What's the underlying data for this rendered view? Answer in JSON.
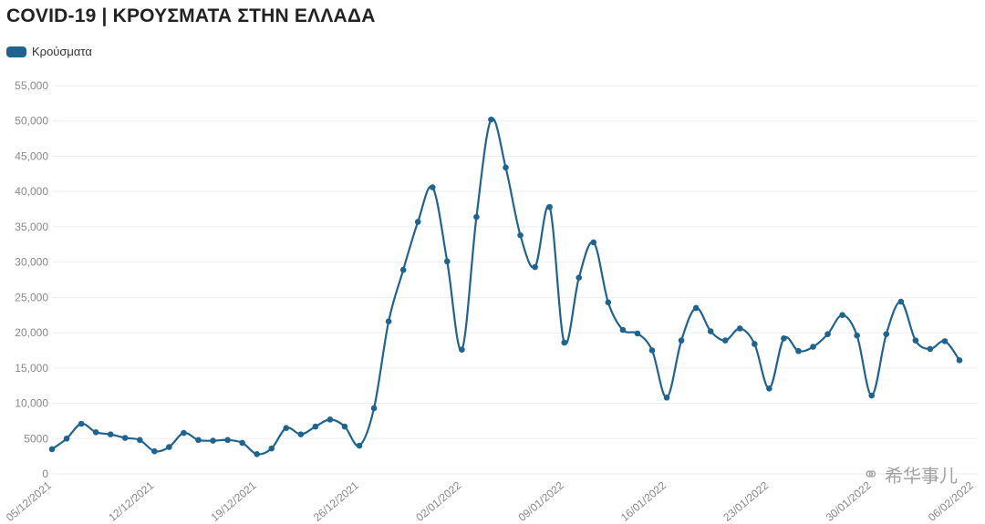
{
  "title": "COVID-19 | ΚΡΟΥΣΜΑΤΑ ΣΤΗΝ ΕΛΛΑΔΑ",
  "watermark": {
    "icon": "wechat-icon",
    "text": "希华事儿"
  },
  "colors": {
    "series": "#1f6391",
    "grid": "#eeeeee",
    "tick": "#888888"
  },
  "chart_data": {
    "type": "line",
    "title": "COVID-19 | ΚΡΟΥΣΜΑΤΑ ΣΤΗΝ ΕΛΛΑΔΑ",
    "xlabel": "",
    "ylabel": "",
    "ylim": [
      0,
      55000
    ],
    "yticks": [
      0,
      5000,
      10000,
      15000,
      20000,
      25000,
      30000,
      35000,
      40000,
      45000,
      50000,
      55000
    ],
    "ytick_labels": [
      "0",
      "5000",
      "10,000",
      "15,000",
      "20,000",
      "25,000",
      "30,000",
      "35,000",
      "40,000",
      "45,000",
      "50,000",
      "55,000"
    ],
    "x_labels": [
      {
        "index": 0,
        "label": "05/12/2021"
      },
      {
        "index": 7,
        "label": "12/12/2021"
      },
      {
        "index": 14,
        "label": "19/12/2021"
      },
      {
        "index": 21,
        "label": "26/12/2021"
      },
      {
        "index": 28,
        "label": "02/01/2022"
      },
      {
        "index": 35,
        "label": "09/01/2022"
      },
      {
        "index": 42,
        "label": "16/01/2022"
      },
      {
        "index": 49,
        "label": "23/01/2022"
      },
      {
        "index": 56,
        "label": "30/01/2022"
      },
      {
        "index": 63,
        "label": "06/02/2022"
      }
    ],
    "legend_position": "top-left",
    "grid": true,
    "series": [
      {
        "name": "Κρούσματα",
        "values": [
          3500,
          5000,
          7100,
          5900,
          5600,
          5100,
          4800,
          3200,
          3800,
          5800,
          4800,
          4700,
          4800,
          4400,
          2800,
          3600,
          6500,
          5600,
          6700,
          7700,
          6700,
          4000,
          9300,
          21600,
          28900,
          35700,
          40600,
          30100,
          17600,
          36400,
          50200,
          43400,
          33800,
          29300,
          37800,
          18600,
          27800,
          32800,
          24300,
          20400,
          19900,
          17500,
          10800,
          18900,
          23500,
          20200,
          18900,
          20600,
          18400,
          12100,
          19200,
          17400,
          18000,
          19800,
          22500,
          19600,
          11100,
          19800,
          24400,
          18900,
          17700,
          18800,
          16100
        ]
      }
    ]
  }
}
